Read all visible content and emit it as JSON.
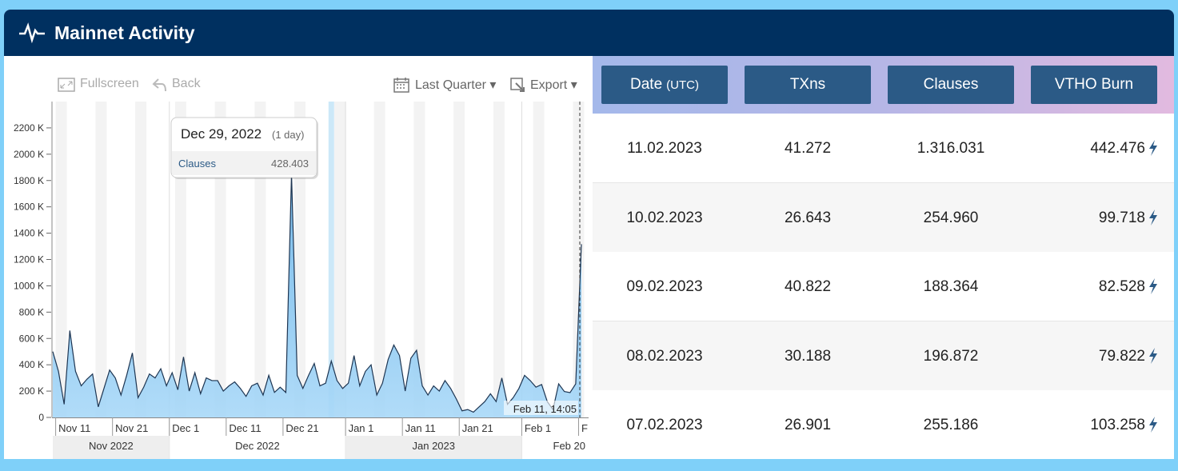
{
  "header": {
    "title": "Mainnet Activity"
  },
  "toolbar": {
    "fullscreen": "Fullscreen",
    "back": "Back",
    "period": "Last Quarter",
    "export": "Export"
  },
  "chart_data": {
    "type": "area",
    "series": [
      {
        "name": "Clauses",
        "color": "#6ab4e8",
        "values": [
          500000,
          350000,
          100000,
          660000,
          350000,
          240000,
          290000,
          330000,
          80000,
          220000,
          360000,
          300000,
          170000,
          320000,
          490000,
          150000,
          230000,
          330000,
          300000,
          370000,
          240000,
          340000,
          210000,
          460000,
          200000,
          340000,
          180000,
          300000,
          280000,
          280000,
          200000,
          240000,
          270000,
          220000,
          160000,
          240000,
          260000,
          170000,
          320000,
          190000,
          230000,
          190000,
          1850000,
          320000,
          220000,
          320000,
          410000,
          240000,
          260000,
          428403,
          280000,
          220000,
          260000,
          470000,
          240000,
          350000,
          400000,
          170000,
          260000,
          440000,
          550000,
          470000,
          200000,
          450000,
          510000,
          240000,
          170000,
          240000,
          200000,
          280000,
          220000,
          140000,
          50000,
          60000,
          40000,
          80000,
          120000,
          180000,
          120000,
          300000,
          100000,
          150000,
          220000,
          320000,
          280000,
          230000,
          250000,
          120000,
          60000,
          255186,
          196872,
          188364,
          254960,
          1316031
        ]
      }
    ],
    "categories": [
      null,
      "Nov 11",
      null,
      null,
      null,
      null,
      null,
      null,
      null,
      null,
      null,
      "Nov 21",
      null,
      null,
      null,
      null,
      null,
      null,
      null,
      null,
      null,
      "Dec 1",
      null,
      null,
      null,
      null,
      null,
      null,
      null,
      null,
      null,
      "Dec 11",
      null,
      null,
      null,
      null,
      null,
      null,
      null,
      null,
      null,
      "Dec 21",
      null,
      null,
      null,
      null,
      null,
      null,
      null,
      null,
      null,
      null,
      "Jan 1",
      null,
      null,
      null,
      null,
      null,
      null,
      null,
      null,
      null,
      "Jan 11",
      null,
      null,
      null,
      null,
      null,
      null,
      null,
      null,
      null,
      "Jan 21",
      null,
      null,
      null,
      null,
      null,
      null,
      null,
      null,
      null,
      null,
      "Feb 1",
      null,
      null,
      null,
      null,
      null,
      null,
      null,
      null,
      null,
      "F"
    ],
    "month_labels": [
      "Nov 2022",
      "Dec 2022",
      "Jan 2023",
      "Feb 20"
    ],
    "ylim": [
      0,
      2400000
    ],
    "yticks": [
      0,
      {
        "value": 200000,
        "label": "200 K"
      },
      {
        "value": 400000,
        "label": "400 K"
      },
      {
        "value": 600000,
        "label": "600 K"
      },
      {
        "value": 800000,
        "label": "800 K"
      },
      {
        "value": 1000000,
        "label": "1000 K"
      },
      {
        "value": 1200000,
        "label": "1200 K"
      },
      {
        "value": 1400000,
        "label": "1400 K"
      },
      {
        "value": 1600000,
        "label": "1600 K"
      },
      {
        "value": 1800000,
        "label": "1800 K"
      },
      {
        "value": 2000000,
        "label": "2000 K"
      },
      {
        "value": 2200000,
        "label": "2200 K"
      }
    ],
    "tooltip": {
      "date": "Dec 29, 2022",
      "span": "(1 day)",
      "series": "Clauses",
      "value": "428.403"
    },
    "end_label": "Feb 11, 14:05"
  },
  "table": {
    "header": [
      {
        "text": "Date",
        "sub": "(UTC)"
      },
      {
        "text": "TXns"
      },
      {
        "text": "Clauses"
      },
      {
        "text": "VTHO Burn"
      }
    ],
    "rows": [
      [
        "11.02.2023",
        "41.272",
        "1.316.031",
        "442.476"
      ],
      [
        "10.02.2023",
        "26.643",
        "254.960",
        "99.718"
      ],
      [
        "09.02.2023",
        "40.822",
        "188.364",
        "82.528"
      ],
      [
        "08.02.2023",
        "30.188",
        "196.872",
        "79.822"
      ],
      [
        "07.02.2023",
        "26.901",
        "255.186",
        "103.258"
      ]
    ]
  }
}
